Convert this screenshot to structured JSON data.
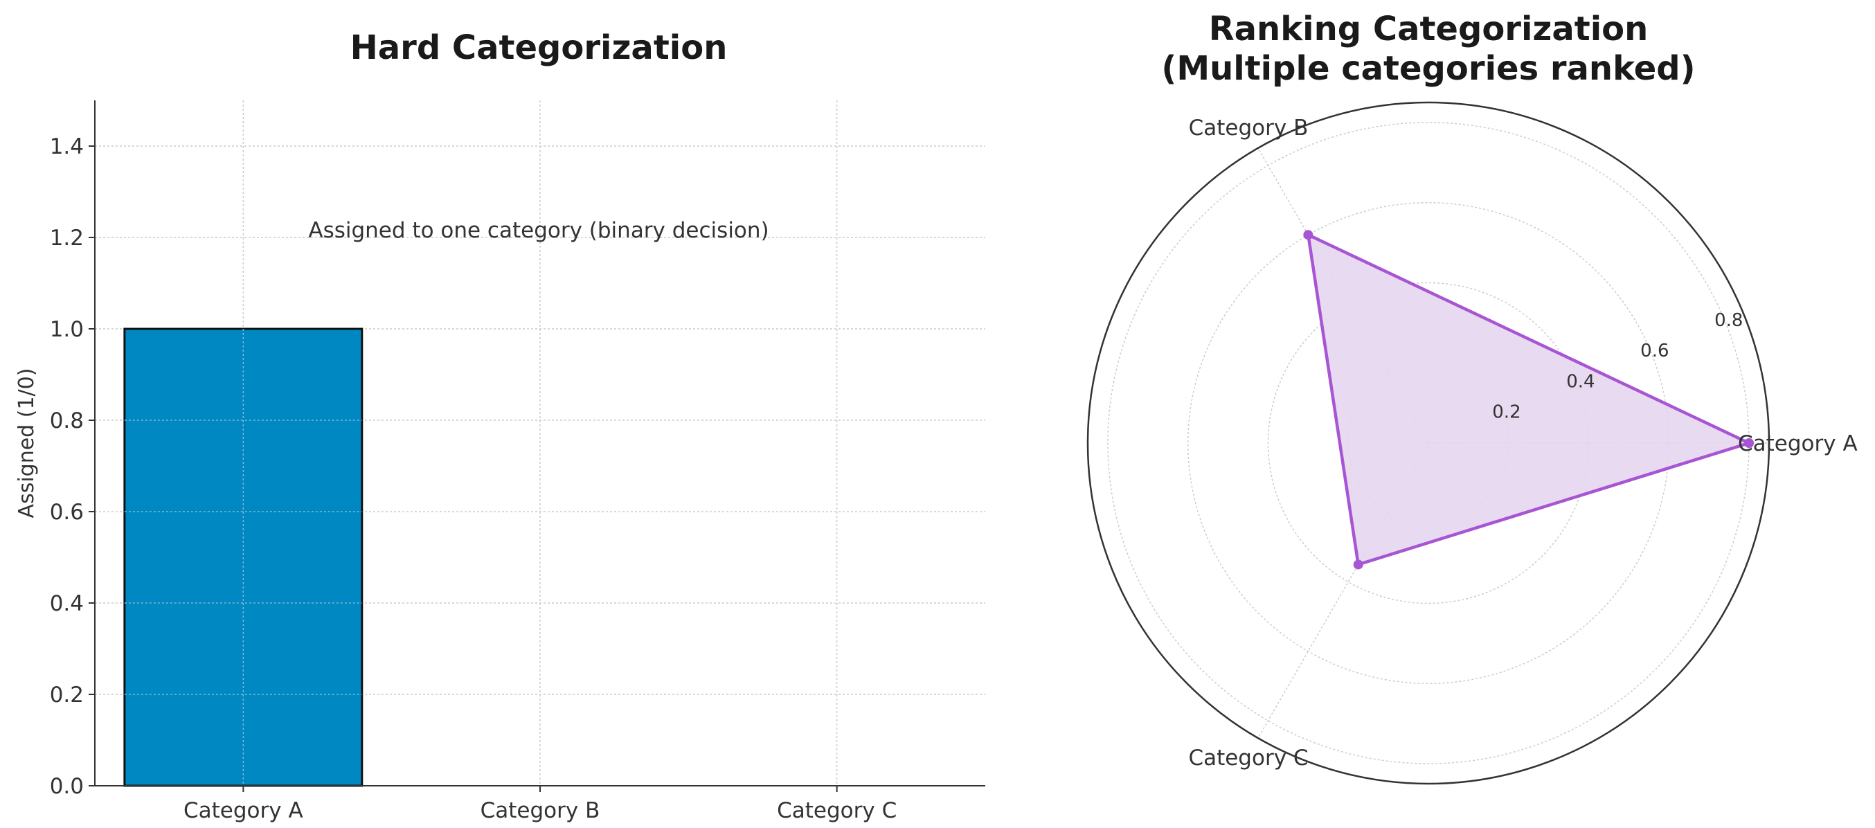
{
  "chart_data": [
    {
      "type": "bar",
      "title": "Hard Categorization",
      "xlabel": "",
      "ylabel": "Assigned (1/0)",
      "categories": [
        "Category A",
        "Category B",
        "Category C"
      ],
      "values": [
        1,
        0,
        0
      ],
      "ylim": [
        0,
        1.5
      ],
      "yticks": [
        "0.0",
        "0.2",
        "0.4",
        "0.6",
        "0.8",
        "1.0",
        "1.2",
        "1.4"
      ],
      "grid": true,
      "annotation": "Assigned to one category (binary decision)",
      "colors": {
        "bar": "#0088c2",
        "bar_edge": "#111111",
        "grid": "#cccccc"
      }
    },
    {
      "type": "radar",
      "title_lines": [
        "Ranking Categorization",
        "(Multiple categories ranked)"
      ],
      "categories": [
        "Category A",
        "Category B",
        "Category C"
      ],
      "values": [
        0.8,
        0.6,
        0.35
      ],
      "rlim": [
        0,
        0.85
      ],
      "rticks": [
        "0.2",
        "0.4",
        "0.6",
        "0.8"
      ],
      "grid": true,
      "colors": {
        "line": "#a855d4",
        "fill": "#e6d6ee",
        "grid": "#cccccc"
      }
    }
  ]
}
